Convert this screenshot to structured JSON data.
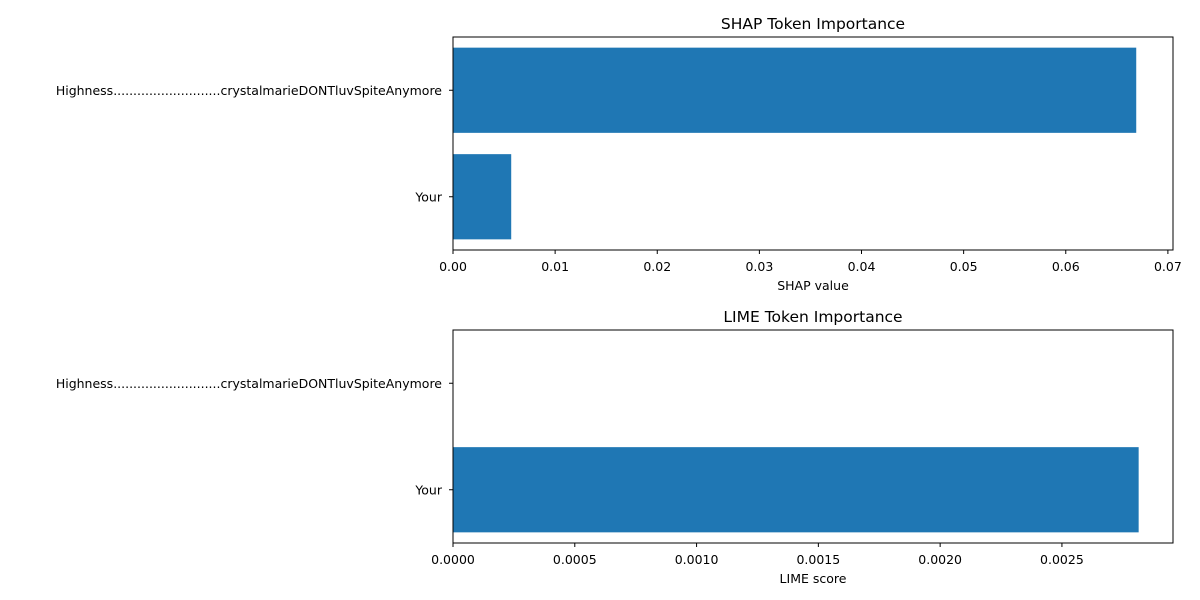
{
  "chart_data": [
    {
      "type": "bar",
      "orientation": "horizontal",
      "title": "SHAP Token Importance",
      "xlabel": "SHAP value",
      "ylabel": "",
      "categories": [
        "Highness...........................crystalmarieDONTluvSpiteAnymore",
        "Your"
      ],
      "values": [
        0.0669,
        0.0057
      ],
      "xlim": [
        0,
        0.0705
      ],
      "xticks": [
        0.0,
        0.01,
        0.02,
        0.03,
        0.04,
        0.05,
        0.06,
        0.07
      ],
      "xtick_labels": [
        "0.00",
        "0.01",
        "0.02",
        "0.03",
        "0.04",
        "0.05",
        "0.06",
        "0.07"
      ],
      "bar_color": "#1f77b4",
      "grid": false,
      "legend": "none"
    },
    {
      "type": "bar",
      "orientation": "horizontal",
      "title": "LIME Token Importance",
      "xlabel": "LIME score",
      "ylabel": "",
      "categories": [
        "Highness...........................crystalmarieDONTluvSpiteAnymore",
        "Your"
      ],
      "values": [
        0.0,
        0.002815
      ],
      "xlim": [
        0,
        0.002956
      ],
      "xticks": [
        0.0,
        0.0005,
        0.001,
        0.0015,
        0.002,
        0.0025
      ],
      "xtick_labels": [
        "0.0000",
        "0.0005",
        "0.0010",
        "0.0015",
        "0.0020",
        "0.0025"
      ],
      "bar_color": "#1f77b4",
      "grid": false,
      "legend": "none"
    }
  ]
}
